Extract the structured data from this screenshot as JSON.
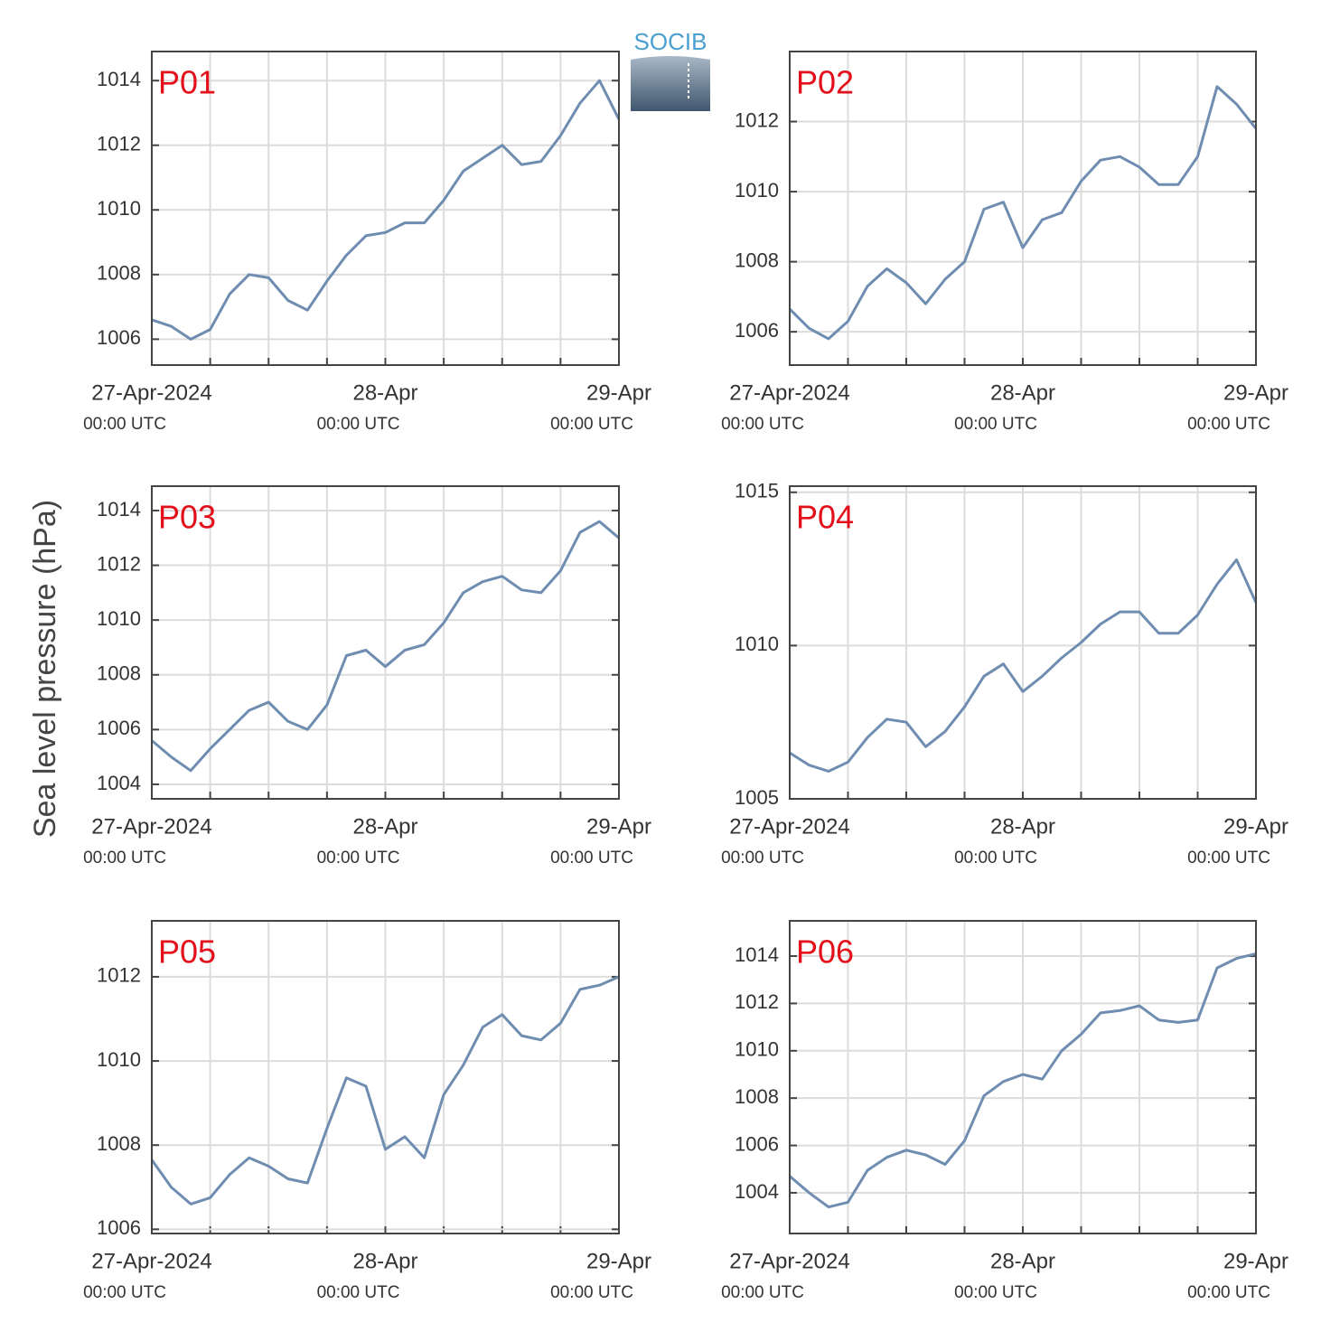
{
  "ylabel": "Sea level pressure (hPa)",
  "logo": "SOCIB",
  "chart_data": [
    {
      "type": "line",
      "title": "P01",
      "x": [
        "2024-04-27T00:00",
        "2024-04-27T02:00",
        "2024-04-27T04:00",
        "2024-04-27T06:00",
        "2024-04-27T08:00",
        "2024-04-27T10:00",
        "2024-04-27T12:00",
        "2024-04-27T14:00",
        "2024-04-27T16:00",
        "2024-04-27T18:00",
        "2024-04-27T20:00",
        "2024-04-27T22:00",
        "2024-04-28T00:00",
        "2024-04-28T02:00",
        "2024-04-28T04:00",
        "2024-04-28T06:00",
        "2024-04-28T08:00",
        "2024-04-28T10:00",
        "2024-04-28T12:00",
        "2024-04-28T14:00",
        "2024-04-28T16:00",
        "2024-04-28T18:00",
        "2024-04-28T20:00",
        "2024-04-28T22:00",
        "2024-04-29T00:00"
      ],
      "values": [
        1006.6,
        1006.4,
        1006.0,
        1006.3,
        1007.4,
        1008.0,
        1007.9,
        1007.2,
        1006.9,
        1007.8,
        1008.6,
        1009.2,
        1009.3,
        1009.6,
        1009.6,
        1010.3,
        1011.2,
        1011.6,
        1012.0,
        1011.4,
        1011.5,
        1012.3,
        1013.3,
        1014.0,
        1012.8
      ],
      "color": "#6f8db0",
      "ylim": [
        1005.2,
        1014.9
      ],
      "yticks": [
        1006,
        1008,
        1010,
        1012,
        1014
      ],
      "xlim": [
        "2024-04-27T00:00",
        "2024-04-29T00:00"
      ],
      "xticks": [
        {
          "value": "2024-04-27T00:00",
          "label": "27-Apr-2024",
          "sublabel": "00:00 UTC"
        },
        {
          "value": "2024-04-28T00:00",
          "label": "28-Apr",
          "sublabel": "00:00 UTC"
        },
        {
          "value": "2024-04-29T00:00",
          "label": "29-Apr",
          "sublabel": "00:00 UTC"
        }
      ],
      "xgrid": [
        "2024-04-27T06:00",
        "2024-04-27T12:00",
        "2024-04-27T18:00",
        "2024-04-28T00:00",
        "2024-04-28T06:00",
        "2024-04-28T12:00",
        "2024-04-28T18:00"
      ],
      "grid": true
    },
    {
      "type": "line",
      "title": "P02",
      "x": [
        "2024-04-27T00:00",
        "2024-04-27T02:00",
        "2024-04-27T04:00",
        "2024-04-27T06:00",
        "2024-04-27T08:00",
        "2024-04-27T10:00",
        "2024-04-27T12:00",
        "2024-04-27T14:00",
        "2024-04-27T16:00",
        "2024-04-27T18:00",
        "2024-04-27T20:00",
        "2024-04-27T22:00",
        "2024-04-28T00:00",
        "2024-04-28T02:00",
        "2024-04-28T04:00",
        "2024-04-28T06:00",
        "2024-04-28T08:00",
        "2024-04-28T10:00",
        "2024-04-28T12:00",
        "2024-04-28T14:00",
        "2024-04-28T16:00",
        "2024-04-28T18:00",
        "2024-04-28T20:00",
        "2024-04-28T22:00",
        "2024-04-29T00:00"
      ],
      "values": [
        1006.65,
        1006.1,
        1005.8,
        1006.3,
        1007.3,
        1007.8,
        1007.4,
        1006.8,
        1007.5,
        1008.0,
        1009.5,
        1009.7,
        1008.4,
        1009.2,
        1009.4,
        1010.3,
        1010.9,
        1011.0,
        1010.7,
        1010.2,
        1010.2,
        1011.0,
        1013.0,
        1012.5,
        1011.8
      ],
      "color": "#6f8db0",
      "ylim": [
        1005.05,
        1014.0
      ],
      "yticks": [
        1006,
        1008,
        1010,
        1012
      ],
      "xlim": [
        "2024-04-27T00:00",
        "2024-04-29T00:00"
      ],
      "xticks": [
        {
          "value": "2024-04-27T00:00",
          "label": "27-Apr-2024",
          "sublabel": "00:00 UTC"
        },
        {
          "value": "2024-04-28T00:00",
          "label": "28-Apr",
          "sublabel": "00:00 UTC"
        },
        {
          "value": "2024-04-29T00:00",
          "label": "29-Apr",
          "sublabel": "00:00 UTC"
        }
      ],
      "xgrid": [
        "2024-04-27T06:00",
        "2024-04-27T12:00",
        "2024-04-27T18:00",
        "2024-04-28T00:00",
        "2024-04-28T06:00",
        "2024-04-28T12:00",
        "2024-04-28T18:00"
      ],
      "grid": true
    },
    {
      "type": "line",
      "title": "P03",
      "x": [
        "2024-04-27T00:00",
        "2024-04-27T02:00",
        "2024-04-27T04:00",
        "2024-04-27T06:00",
        "2024-04-27T08:00",
        "2024-04-27T10:00",
        "2024-04-27T12:00",
        "2024-04-27T14:00",
        "2024-04-27T16:00",
        "2024-04-27T18:00",
        "2024-04-27T20:00",
        "2024-04-27T22:00",
        "2024-04-28T00:00",
        "2024-04-28T02:00",
        "2024-04-28T04:00",
        "2024-04-28T06:00",
        "2024-04-28T08:00",
        "2024-04-28T10:00",
        "2024-04-28T12:00",
        "2024-04-28T14:00",
        "2024-04-28T16:00",
        "2024-04-28T18:00",
        "2024-04-28T20:00",
        "2024-04-28T22:00",
        "2024-04-29T00:00"
      ],
      "values": [
        1005.6,
        1005.0,
        1004.5,
        1005.3,
        1006.0,
        1006.7,
        1007.0,
        1006.3,
        1006.0,
        1006.9,
        1008.7,
        1008.9,
        1008.3,
        1008.9,
        1009.1,
        1009.9,
        1011.0,
        1011.4,
        1011.6,
        1011.1,
        1011.0,
        1011.8,
        1013.2,
        1013.6,
        1013.0
      ],
      "color": "#6f8db0",
      "ylim": [
        1003.47,
        1014.89
      ],
      "yticks": [
        1004,
        1006,
        1008,
        1010,
        1012,
        1014
      ],
      "xlim": [
        "2024-04-27T00:00",
        "2024-04-29T00:00"
      ],
      "xticks": [
        {
          "value": "2024-04-27T00:00",
          "label": "27-Apr-2024",
          "sublabel": "00:00 UTC"
        },
        {
          "value": "2024-04-28T00:00",
          "label": "28-Apr",
          "sublabel": "00:00 UTC"
        },
        {
          "value": "2024-04-29T00:00",
          "label": "29-Apr",
          "sublabel": "00:00 UTC"
        }
      ],
      "xgrid": [
        "2024-04-27T06:00",
        "2024-04-27T12:00",
        "2024-04-27T18:00",
        "2024-04-28T00:00",
        "2024-04-28T06:00",
        "2024-04-28T12:00",
        "2024-04-28T18:00"
      ],
      "grid": true
    },
    {
      "type": "line",
      "title": "P04",
      "x": [
        "2024-04-27T00:00",
        "2024-04-27T02:00",
        "2024-04-27T04:00",
        "2024-04-27T06:00",
        "2024-04-27T08:00",
        "2024-04-27T10:00",
        "2024-04-27T12:00",
        "2024-04-27T14:00",
        "2024-04-27T16:00",
        "2024-04-27T18:00",
        "2024-04-27T20:00",
        "2024-04-27T22:00",
        "2024-04-28T00:00",
        "2024-04-28T02:00",
        "2024-04-28T04:00",
        "2024-04-28T06:00",
        "2024-04-28T08:00",
        "2024-04-28T10:00",
        "2024-04-28T12:00",
        "2024-04-28T14:00",
        "2024-04-28T16:00",
        "2024-04-28T18:00",
        "2024-04-28T20:00",
        "2024-04-28T22:00",
        "2024-04-29T00:00"
      ],
      "values": [
        1006.5,
        1006.1,
        1005.9,
        1006.2,
        1007.0,
        1007.6,
        1007.5,
        1006.7,
        1007.2,
        1008.0,
        1009.0,
        1009.4,
        1008.5,
        1009.0,
        1009.6,
        1010.1,
        1010.7,
        1011.1,
        1011.1,
        1010.4,
        1010.4,
        1011.0,
        1012.0,
        1012.8,
        1011.4
      ],
      "color": "#6f8db0",
      "ylim": [
        1005,
        1015.2
      ],
      "yticks": [
        1005,
        1010,
        1015
      ],
      "xlim": [
        "2024-04-27T00:00",
        "2024-04-29T00:00"
      ],
      "xticks": [
        {
          "value": "2024-04-27T00:00",
          "label": "27-Apr-2024",
          "sublabel": "00:00 UTC"
        },
        {
          "value": "2024-04-28T00:00",
          "label": "28-Apr",
          "sublabel": "00:00 UTC"
        },
        {
          "value": "2024-04-29T00:00",
          "label": "29-Apr",
          "sublabel": "00:00 UTC"
        }
      ],
      "xgrid": [
        "2024-04-27T06:00",
        "2024-04-27T12:00",
        "2024-04-27T18:00",
        "2024-04-28T00:00",
        "2024-04-28T06:00",
        "2024-04-28T12:00",
        "2024-04-28T18:00"
      ],
      "grid": true
    },
    {
      "type": "line",
      "title": "P05",
      "x": [
        "2024-04-27T00:00",
        "2024-04-27T02:00",
        "2024-04-27T04:00",
        "2024-04-27T06:00",
        "2024-04-27T08:00",
        "2024-04-27T10:00",
        "2024-04-27T12:00",
        "2024-04-27T14:00",
        "2024-04-27T16:00",
        "2024-04-27T18:00",
        "2024-04-27T20:00",
        "2024-04-27T22:00",
        "2024-04-28T00:00",
        "2024-04-28T02:00",
        "2024-04-28T04:00",
        "2024-04-28T06:00",
        "2024-04-28T08:00",
        "2024-04-28T10:00",
        "2024-04-28T12:00",
        "2024-04-28T14:00",
        "2024-04-28T16:00",
        "2024-04-28T18:00",
        "2024-04-28T20:00",
        "2024-04-28T22:00",
        "2024-04-29T00:00"
      ],
      "values": [
        1007.65,
        1007.0,
        1006.6,
        1006.75,
        1007.3,
        1007.7,
        1007.5,
        1007.2,
        1007.1,
        1008.4,
        1009.6,
        1009.4,
        1007.9,
        1008.2,
        1007.7,
        1009.2,
        1009.9,
        1010.8,
        1011.1,
        1010.6,
        1010.5,
        1010.9,
        1011.7,
        1011.8,
        1012.0
      ],
      "color": "#6f8db0",
      "ylim": [
        1005.9,
        1013.33
      ],
      "yticks": [
        1006,
        1008,
        1010,
        1012
      ],
      "xlim": [
        "2024-04-27T00:00",
        "2024-04-29T00:00"
      ],
      "xticks": [
        {
          "value": "2024-04-27T00:00",
          "label": "27-Apr-2024",
          "sublabel": "00:00 UTC"
        },
        {
          "value": "2024-04-28T00:00",
          "label": "28-Apr",
          "sublabel": "00:00 UTC"
        },
        {
          "value": "2024-04-29T00:00",
          "label": "29-Apr",
          "sublabel": "00:00 UTC"
        }
      ],
      "xgrid": [
        "2024-04-27T06:00",
        "2024-04-27T12:00",
        "2024-04-27T18:00",
        "2024-04-28T00:00",
        "2024-04-28T06:00",
        "2024-04-28T12:00",
        "2024-04-28T18:00"
      ],
      "grid": true
    },
    {
      "type": "line",
      "title": "P06",
      "x": [
        "2024-04-27T00:00",
        "2024-04-27T02:00",
        "2024-04-27T04:00",
        "2024-04-27T06:00",
        "2024-04-27T08:00",
        "2024-04-27T10:00",
        "2024-04-27T12:00",
        "2024-04-27T14:00",
        "2024-04-27T16:00",
        "2024-04-27T18:00",
        "2024-04-27T20:00",
        "2024-04-27T22:00",
        "2024-04-28T00:00",
        "2024-04-28T02:00",
        "2024-04-28T04:00",
        "2024-04-28T06:00",
        "2024-04-28T08:00",
        "2024-04-28T10:00",
        "2024-04-28T12:00",
        "2024-04-28T14:00",
        "2024-04-28T16:00",
        "2024-04-28T18:00",
        "2024-04-28T20:00",
        "2024-04-28T22:00",
        "2024-04-29T00:00"
      ],
      "values": [
        1004.7,
        1004.0,
        1003.4,
        1003.6,
        1004.95,
        1005.5,
        1005.8,
        1005.6,
        1005.2,
        1006.2,
        1008.1,
        1008.7,
        1009.0,
        1008.8,
        1010.0,
        1010.7,
        1011.6,
        1011.7,
        1011.9,
        1011.3,
        1011.2,
        1011.3,
        1013.5,
        1013.9,
        1014.1
      ],
      "color": "#6f8db0",
      "ylim": [
        1002.28,
        1015.49
      ],
      "yticks": [
        1004,
        1006,
        1008,
        1010,
        1012,
        1014
      ],
      "xlim": [
        "2024-04-27T00:00",
        "2024-04-29T00:00"
      ],
      "xticks": [
        {
          "value": "2024-04-27T00:00",
          "label": "27-Apr-2024",
          "sublabel": "00:00 UTC"
        },
        {
          "value": "2024-04-28T00:00",
          "label": "28-Apr",
          "sublabel": "00:00 UTC"
        },
        {
          "value": "2024-04-29T00:00",
          "label": "29-Apr",
          "sublabel": "00:00 UTC"
        }
      ],
      "xgrid": [
        "2024-04-27T06:00",
        "2024-04-27T12:00",
        "2024-04-27T18:00",
        "2024-04-28T00:00",
        "2024-04-28T06:00",
        "2024-04-28T12:00",
        "2024-04-28T18:00"
      ],
      "grid": true
    }
  ]
}
